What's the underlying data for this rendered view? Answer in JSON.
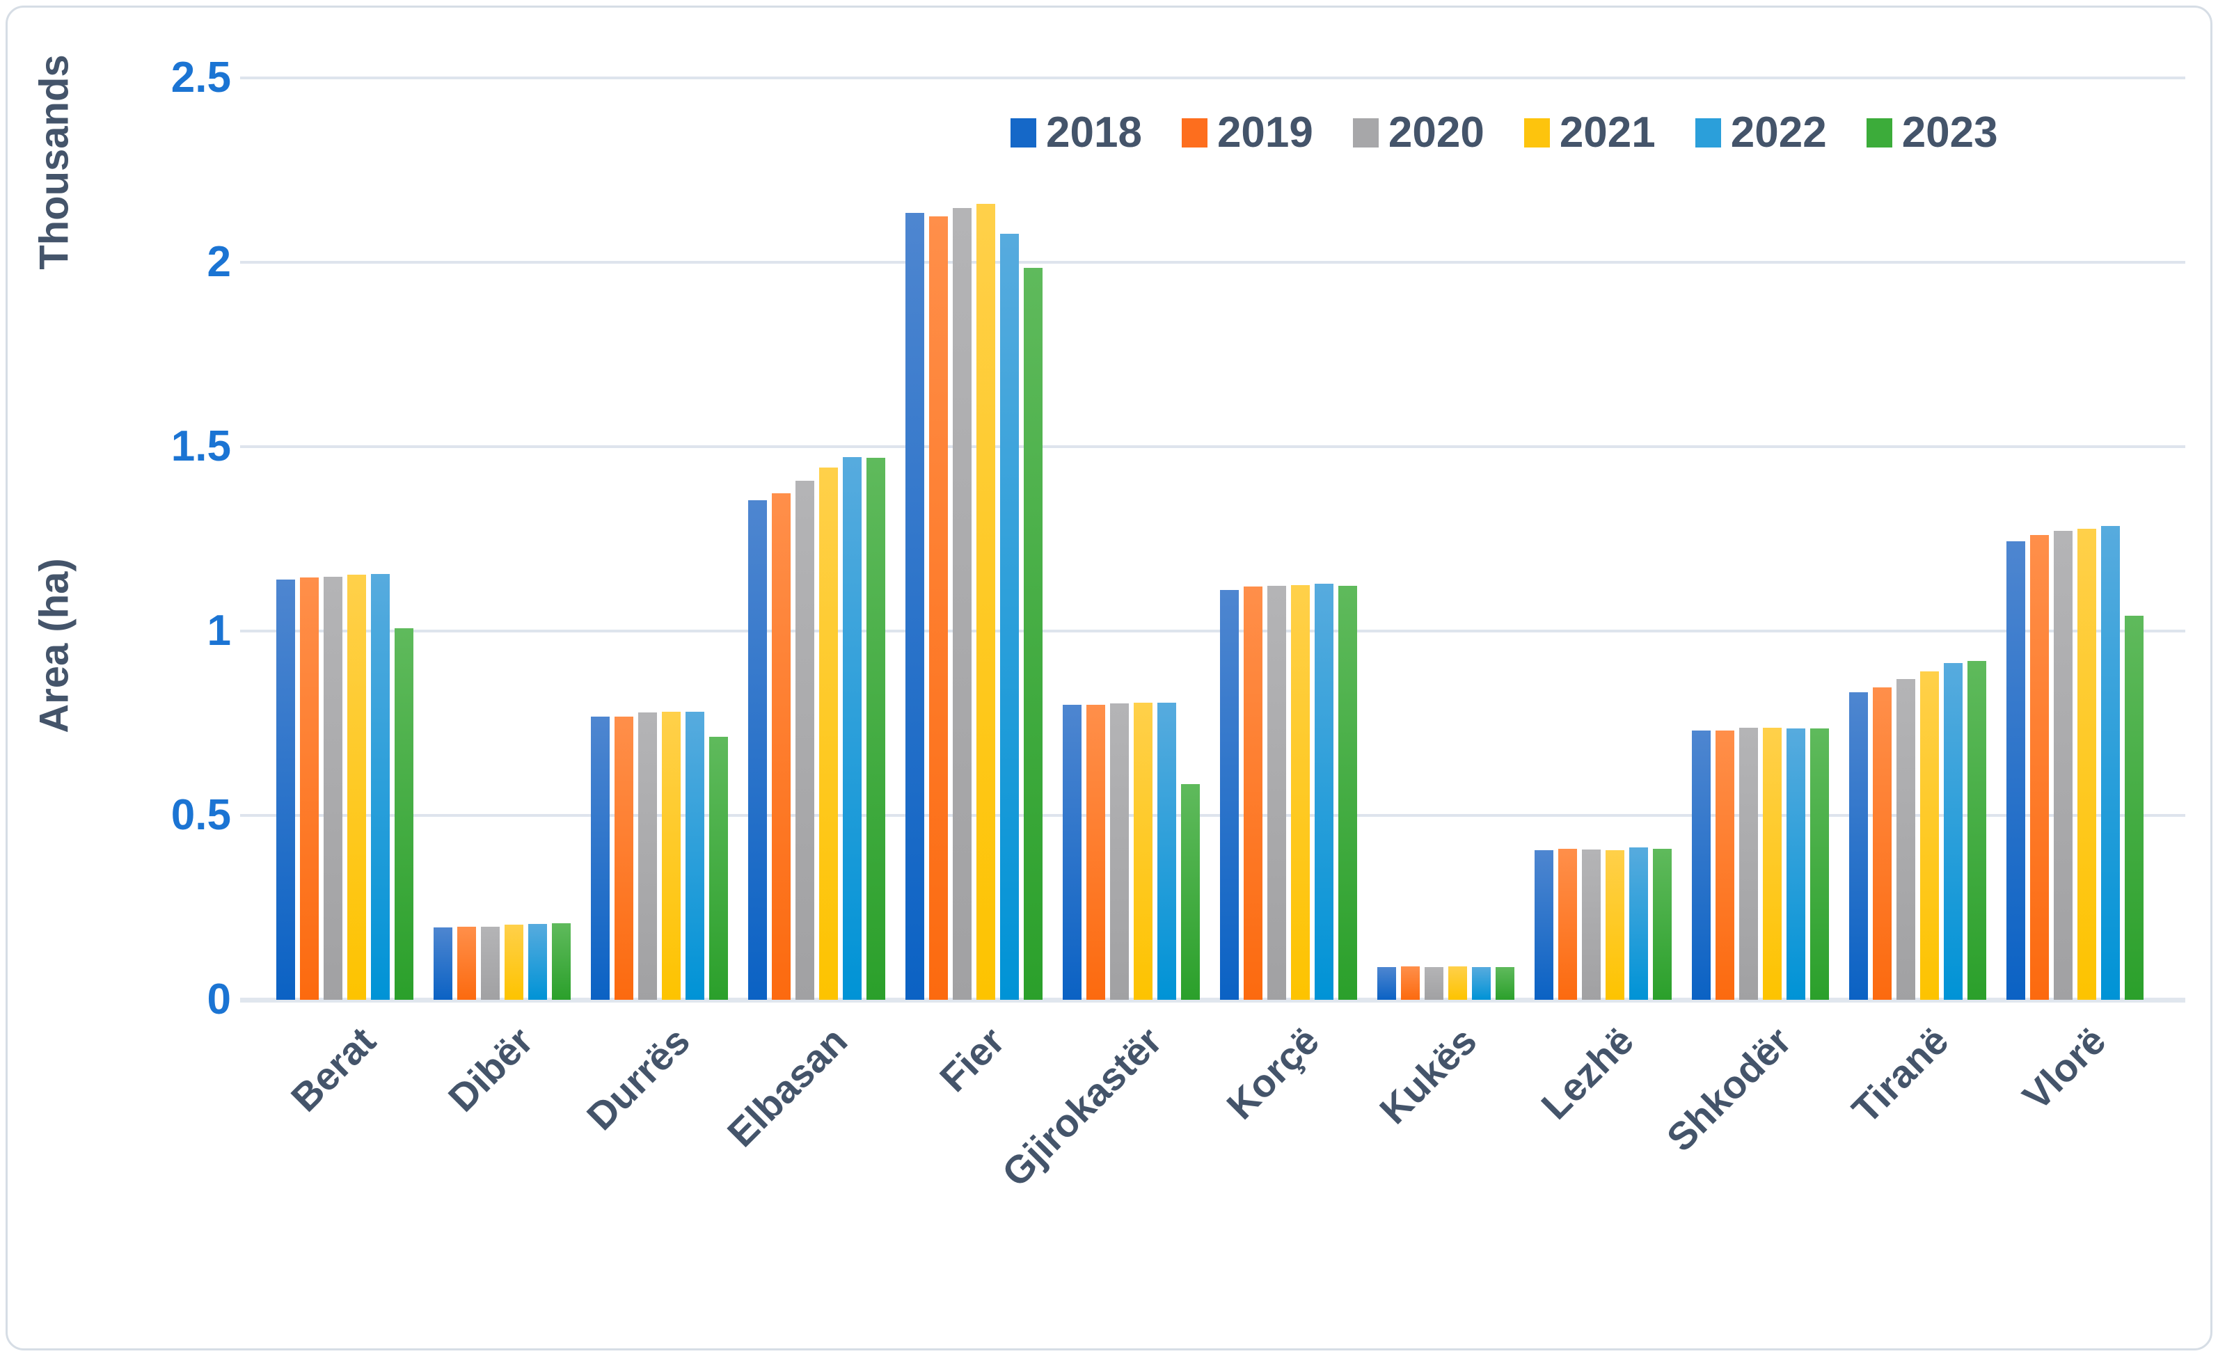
{
  "chart_data": {
    "type": "bar",
    "title": "",
    "ylabel": "Area (ha)",
    "axis_unit_label": "Thousands",
    "ylim": [
      0,
      2.5
    ],
    "grid": true,
    "legend_position": "top",
    "ytick_labels": [
      "0",
      "0.5",
      "1",
      "1.5",
      "2",
      "2.5"
    ],
    "ytick_values": [
      0,
      0.5,
      1,
      1.5,
      2,
      2.5
    ],
    "categories": [
      "Berat",
      "Dibër",
      "Durrës",
      "Elbasan",
      "Fier",
      "Gjirokastër",
      "Korçë",
      "Kukës",
      "Lezhë",
      "Shkodër",
      "Tiranë",
      "Vlorë"
    ],
    "series": [
      {
        "name": "2018",
        "legend_color": "#1568c8",
        "gradient_top": "#4e86d0",
        "gradient_bottom": "#0b62c4",
        "values": [
          1.14,
          0.196,
          0.768,
          1.355,
          2.134,
          0.8,
          1.111,
          0.088,
          0.405,
          0.73,
          0.834,
          1.243
        ]
      },
      {
        "name": "2019",
        "legend_color": "#fd6e1e",
        "gradient_top": "#ff8f4a",
        "gradient_bottom": "#fc6a0f",
        "values": [
          1.145,
          0.199,
          0.768,
          1.374,
          2.125,
          0.8,
          1.121,
          0.09,
          0.41,
          0.73,
          0.847,
          1.26
        ]
      },
      {
        "name": "2020",
        "legend_color": "#a7a7a9",
        "gradient_top": "#b4b4b6",
        "gradient_bottom": "#a1a1a3",
        "values": [
          1.148,
          0.199,
          0.779,
          1.408,
          2.147,
          0.804,
          1.123,
          0.088,
          0.408,
          0.737,
          0.87,
          1.272
        ]
      },
      {
        "name": "2021",
        "legend_color": "#fdc40d",
        "gradient_top": "#ffd04a",
        "gradient_bottom": "#fdc300",
        "values": [
          1.153,
          0.203,
          0.781,
          1.444,
          2.158,
          0.806,
          1.125,
          0.09,
          0.406,
          0.738,
          0.891,
          1.277
        ]
      },
      {
        "name": "2022",
        "legend_color": "#2b9fda",
        "gradient_top": "#57abde",
        "gradient_bottom": "#0093d6",
        "values": [
          1.155,
          0.205,
          0.781,
          1.472,
          2.077,
          0.806,
          1.128,
          0.088,
          0.414,
          0.736,
          0.913,
          1.285
        ]
      },
      {
        "name": "2023",
        "legend_color": "#3cac3a",
        "gradient_top": "#5fba5c",
        "gradient_bottom": "#2ba02b",
        "values": [
          1.007,
          0.207,
          0.713,
          1.47,
          1.985,
          0.585,
          1.123,
          0.088,
          0.41,
          0.736,
          0.919,
          1.041
        ]
      }
    ]
  }
}
